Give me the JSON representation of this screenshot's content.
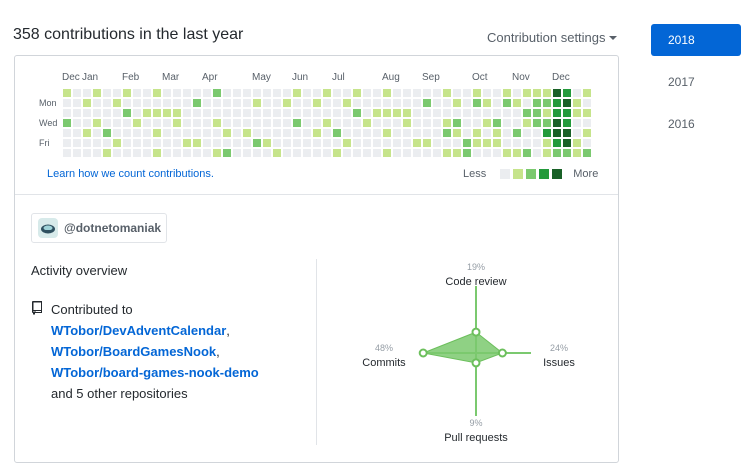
{
  "header": {
    "title": "358 contributions in the last year",
    "settings_label": "Contribution settings"
  },
  "calendar": {
    "months": [
      "Dec",
      "Jan",
      "Feb",
      "Mar",
      "Apr",
      "May",
      "Jun",
      "Jul",
      "Aug",
      "Sep",
      "Oct",
      "Nov",
      "Dec"
    ],
    "weekday_labels": [
      "Mon",
      "Wed",
      "Fri"
    ],
    "colors": [
      "#ebedf0",
      "#c6e48b",
      "#7bc96f",
      "#239a3b",
      "#196127"
    ],
    "learn_link": "Learn how we count contributions.",
    "legend_less": "Less",
    "legend_more": "More"
  },
  "org": {
    "name": "@dotnetomaniak"
  },
  "activity": {
    "title": "Activity overview",
    "contributed_to": "Contributed to",
    "repos": [
      {
        "name": "WTobor/DevAdventCalendar",
        "suffix": ","
      },
      {
        "name": "WTobor/BoardGamesNook",
        "suffix": ","
      },
      {
        "name": "WTobor/board-games-nook-demo",
        "suffix": ""
      }
    ],
    "others": "and 5 other repositories"
  },
  "radar": {
    "code_review": {
      "label": "Code review",
      "percent": "19%",
      "value": 19
    },
    "issues": {
      "label": "Issues",
      "percent": "24%",
      "value": 24
    },
    "pull_requests": {
      "label": "Pull requests",
      "percent": "9%",
      "value": 9
    },
    "commits": {
      "label": "Commits",
      "percent": "48%",
      "value": 48
    },
    "fill_color": "#7bc96f",
    "axis_color": "#7bc96f"
  },
  "years": [
    {
      "label": "2018",
      "active": true
    },
    {
      "label": "2017",
      "active": false
    },
    {
      "label": "2016",
      "active": false
    }
  ]
}
